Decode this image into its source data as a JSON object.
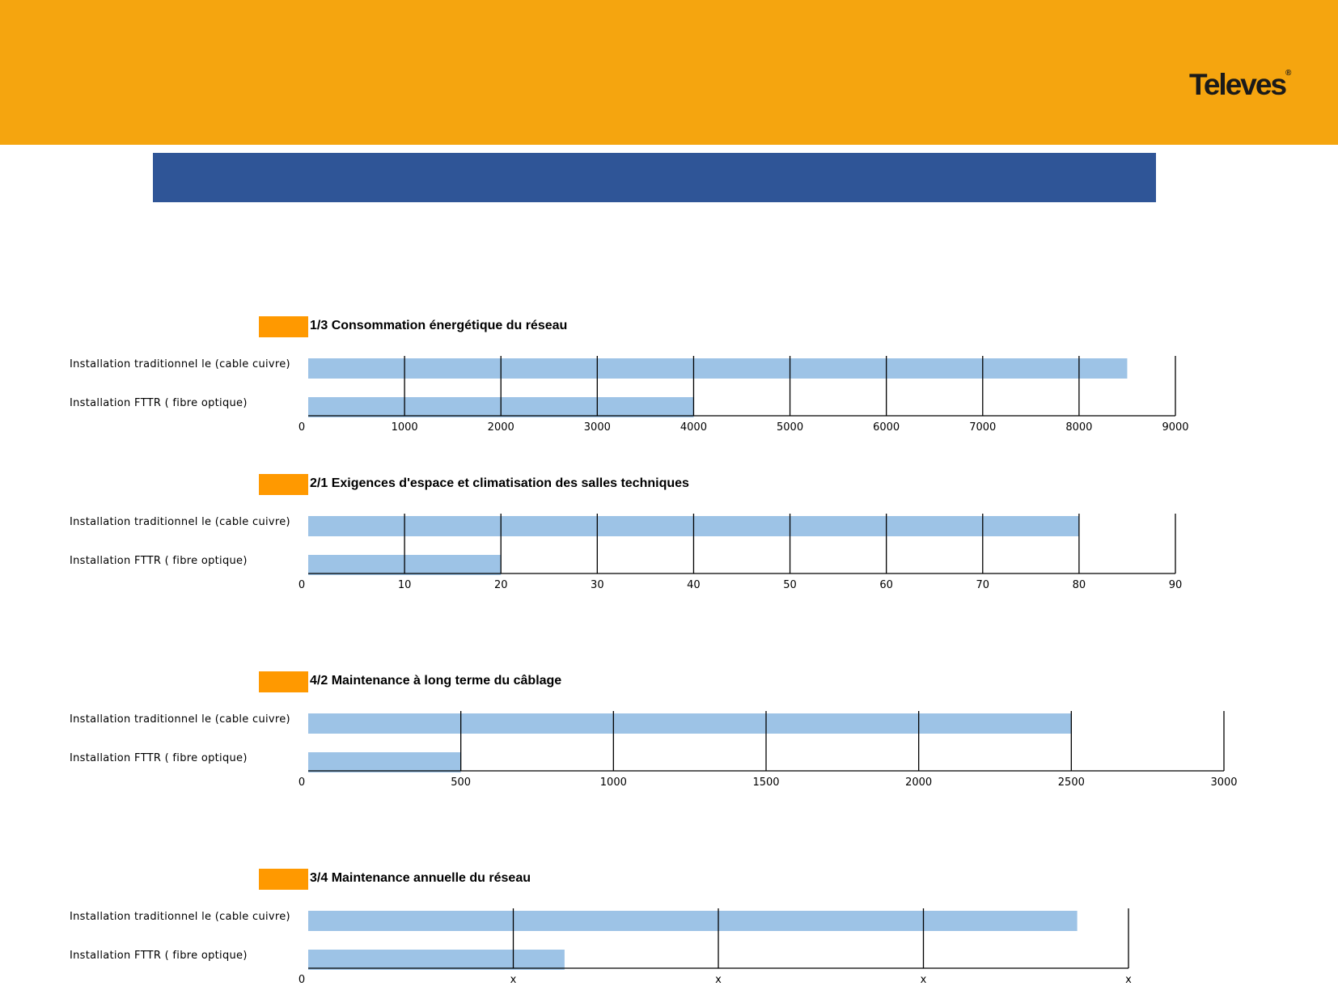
{
  "header": {
    "brand": "Televes",
    "brand_mark": "®",
    "accent_color": "#f5a50f",
    "title_bar_color": "#2f5597"
  },
  "colors": {
    "marker": "#ff9900",
    "bar": "#9dc3e6",
    "grid": "#000000"
  },
  "rows": [
    "Installation traditionnel le (cable cuivre)",
    "Installation  FTTR ( fibre optique)"
  ],
  "chart_data": [
    {
      "type": "bar",
      "title": "1/3   Consommation énergétique du réseau",
      "categories": [
        "Installation traditionnel le (cable cuivre)",
        "Installation  FTTR ( fibre optique)"
      ],
      "values": [
        8500,
        4000
      ],
      "xlim": [
        0,
        9000
      ],
      "ticks": [
        "0",
        "1000",
        "2000",
        "3000",
        "4000",
        "5000",
        "6000",
        "7000",
        "8000",
        "9000"
      ],
      "grid": true
    },
    {
      "type": "bar",
      "title": "2/1  Exigences d'espace et climatisation des salles techniques",
      "categories": [
        "Installation traditionnel le (cable cuivre)",
        "Installation  FTTR ( fibre optique)"
      ],
      "values": [
        80,
        20
      ],
      "xlim": [
        0,
        90
      ],
      "ticks": [
        "0",
        "10",
        "20",
        "30",
        "40",
        "50",
        "60",
        "70",
        "80",
        "90"
      ],
      "grid": true
    },
    {
      "type": "bar",
      "title": "4/2  Maintenance à long terme du câblage",
      "categories": [
        "Installation traditionnel le (cable cuivre)",
        "Installation  FTTR ( fibre optique)"
      ],
      "values": [
        2500,
        500
      ],
      "xlim": [
        0,
        3000
      ],
      "ticks": [
        "0",
        "500",
        "1000",
        "1500",
        "2000",
        "2500",
        "3000"
      ],
      "grid": true
    },
    {
      "type": "bar",
      "title": "3/4 Maintenance annuelle du réseau",
      "categories": [
        "Installation traditionnel le (cable cuivre)",
        "Installation  FTTR ( fibre optique)"
      ],
      "values": [
        3.75,
        1.25
      ],
      "xlim": [
        0,
        4
      ],
      "ticks": [
        "0",
        "x",
        "x",
        "x",
        "x"
      ],
      "grid": true
    }
  ]
}
